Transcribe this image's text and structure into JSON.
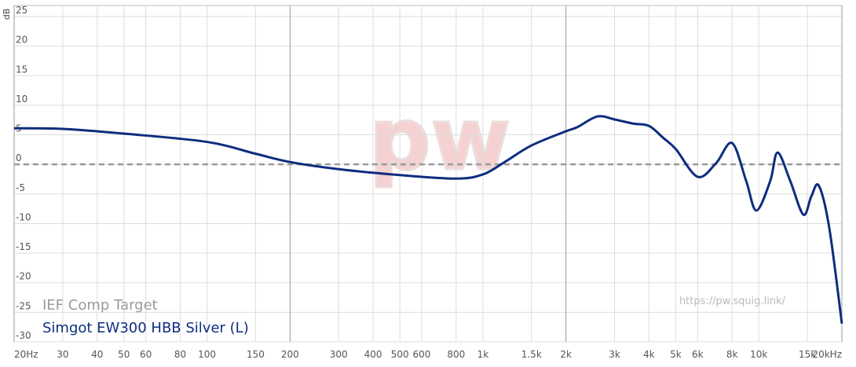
{
  "chart_data": {
    "type": "line",
    "y_label": "dB",
    "watermark": "pw",
    "url": "https://pw.squig.link/",
    "xlog": true,
    "grid": true,
    "xlim": [
      20,
      20000
    ],
    "ylim": [
      -30,
      25
    ],
    "xticks": [
      {
        "value": 20,
        "label": "20Hz"
      },
      30,
      40,
      50,
      60,
      80,
      100,
      150,
      200,
      300,
      400,
      500,
      600,
      800,
      {
        "value": 1000,
        "label": "1k"
      },
      {
        "value": 1500,
        "label": "1.5k"
      },
      {
        "value": 2000,
        "label": "2k"
      },
      {
        "value": 3000,
        "label": "3k"
      },
      {
        "value": 4000,
        "label": "4k"
      },
      {
        "value": 5000,
        "label": "5k"
      },
      {
        "value": 6000,
        "label": "6k"
      },
      {
        "value": 8000,
        "label": "8k"
      },
      {
        "value": 10000,
        "label": "10k"
      },
      {
        "value": 15000,
        "label": "15k"
      },
      {
        "value": 20000,
        "label": "20kHz"
      }
    ],
    "yticks": [
      25,
      20,
      15,
      10,
      5,
      0,
      -5,
      -10,
      -15,
      -20,
      -25,
      -30
    ],
    "series": [
      {
        "name": "IEF Comp Target",
        "color": "#9a9a9a",
        "dashed": true,
        "x": [
          20,
          20000
        ],
        "values": [
          0,
          0
        ]
      },
      {
        "name": "Simgot EW300 HBB Silver (L)",
        "color": "#0d2d7e",
        "dashed": false,
        "x": [
          20,
          30,
          50,
          100,
          150,
          200,
          300,
          500,
          800,
          1000,
          1200,
          1500,
          2000,
          2200,
          2600,
          3000,
          3500,
          4000,
          4500,
          5000,
          6000,
          7000,
          8000,
          9000,
          9800,
          11000,
          11700,
          13000,
          14500,
          15500,
          16500,
          18000,
          20000
        ],
        "values": [
          6.1,
          6.0,
          5.2,
          3.8,
          1.8,
          0.4,
          -0.8,
          -1.8,
          -2.4,
          -1.7,
          0.4,
          3.2,
          5.6,
          6.3,
          8.1,
          7.6,
          6.9,
          6.5,
          4.5,
          2.6,
          -2.1,
          0.2,
          3.6,
          -2.8,
          -7.8,
          -2.8,
          2.0,
          -2.8,
          -8.5,
          -5.4,
          -3.6,
          -10.7,
          -26.9
        ]
      }
    ]
  }
}
